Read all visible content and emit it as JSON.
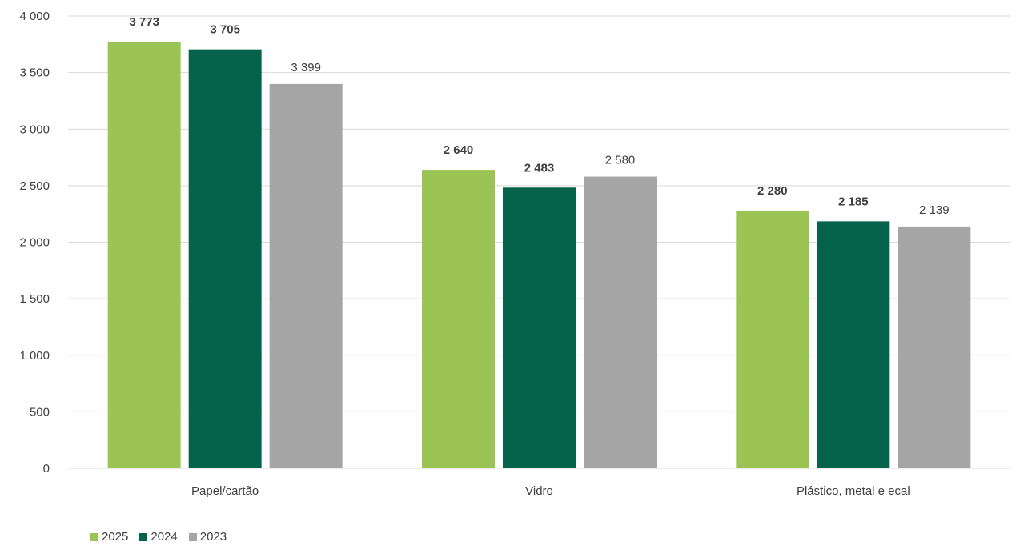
{
  "chart_data": {
    "type": "bar",
    "categories": [
      "Papel/cartão",
      "Vidro",
      "Plástico, metal e ecal"
    ],
    "series": [
      {
        "name": "2025",
        "color": "#9bc454",
        "values": [
          3773,
          2640,
          2280
        ],
        "labels": [
          "3 773",
          "2 640",
          "2 280"
        ],
        "bold_labels": true
      },
      {
        "name": "2024",
        "color": "#05634b",
        "values": [
          3705,
          2483,
          2185
        ],
        "labels": [
          "3 705",
          "2 483",
          "2 185"
        ],
        "bold_labels": true
      },
      {
        "name": "2023",
        "color": "#a5a5a5",
        "values": [
          3399,
          2580,
          2139
        ],
        "labels": [
          "3 399",
          "2 580",
          "2 139"
        ],
        "bold_labels": false
      }
    ],
    "yticks": [
      0,
      500,
      1000,
      1500,
      2000,
      2500,
      3000,
      3500,
      4000
    ],
    "ytick_labels": [
      "0",
      "500",
      "1 000",
      "1 500",
      "2 000",
      "2 500",
      "3 000",
      "3 500",
      "4 000"
    ],
    "ylim": [
      0,
      4000
    ],
    "grid": true,
    "legend_position": "bottom-left",
    "title": "",
    "xlabel": "",
    "ylabel": ""
  }
}
